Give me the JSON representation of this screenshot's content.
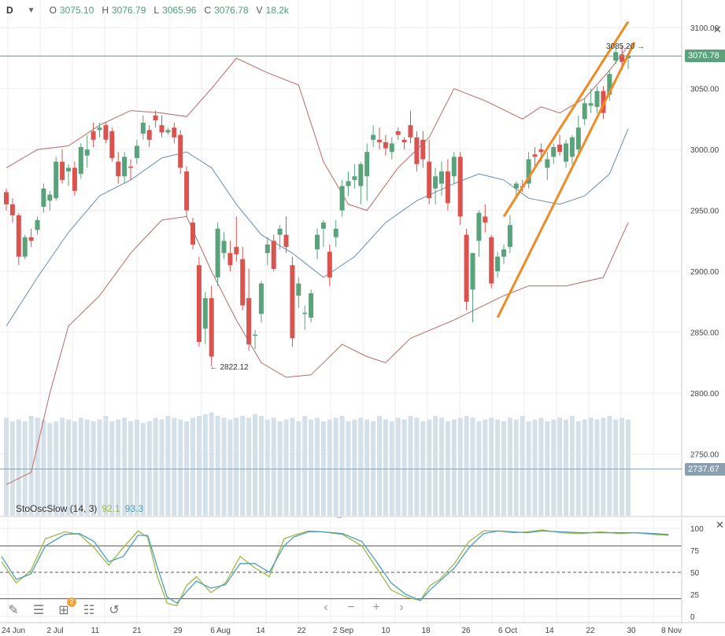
{
  "header": {
    "period": "D",
    "o_label": "O",
    "o_value": "3075.10",
    "h_label": "H",
    "h_value": "3076.79",
    "l_label": "L",
    "l_value": "3065.96",
    "c_label": "C",
    "c_value": "3076.78",
    "v_label": "V",
    "v_value": "18.2k"
  },
  "price_axis": {
    "ticks": [
      "3100.00",
      "3050.00",
      "3000.00",
      "2950.00",
      "2900.00",
      "2850.00",
      "2800.00",
      "2750.00"
    ],
    "tick_values": [
      3100,
      3050,
      3000,
      2950,
      2900,
      2850,
      2800,
      2750
    ]
  },
  "price_tags": {
    "last": "3076.78",
    "last_color": "#5aa27c",
    "volume_level": "2737.67",
    "volume_color": "#8aa0b0"
  },
  "annotations": {
    "high": "3085.20",
    "low": "2822.12"
  },
  "oscillator": {
    "name": "StoOscSlow (14, 3)",
    "k_value": "92.1",
    "d_value": "93.3",
    "k_color": "#9cb84c",
    "d_color": "#4d9fb5",
    "ticks": [
      "100",
      "75",
      "50",
      "25",
      "0"
    ],
    "tick_values": [
      100,
      75,
      50,
      25,
      0
    ]
  },
  "dates": [
    "24 Jun",
    "2 Jul",
    "11",
    "21",
    "29",
    "6 Aug",
    "14",
    "22",
    "2 Sep",
    "10",
    "18",
    "26",
    "6 Oct",
    "14",
    "22",
    "30",
    "8 Nov"
  ],
  "colors": {
    "up": "#5aa27c",
    "down": "#d9534f",
    "band": "#b86a66",
    "mid": "#6b8cb0",
    "volume": "#d5e1ea",
    "trend": "#f08a24",
    "last_line": "#5aa27c"
  },
  "chart_data": {
    "type": "candlestick",
    "ylim": [
      2720,
      3115
    ],
    "candles": [
      [
        2965,
        2968,
        2950,
        2955
      ],
      [
        2955,
        2960,
        2940,
        2946
      ],
      [
        2946,
        2948,
        2905,
        2912
      ],
      [
        2912,
        2930,
        2910,
        2928
      ],
      [
        2928,
        2935,
        2920,
        2925
      ],
      [
        2934,
        2945,
        2930,
        2942
      ],
      [
        2953,
        2972,
        2948,
        2968
      ],
      [
        2958,
        2966,
        2950,
        2963
      ],
      [
        2960,
        2994,
        2958,
        2990
      ],
      [
        2990,
        3000,
        2972,
        2975
      ],
      [
        2982,
        2988,
        2970,
        2985
      ],
      [
        2985,
        2990,
        2962,
        2966
      ],
      [
        2980,
        3005,
        2976,
        3002
      ],
      [
        2995,
        3012,
        2985,
        3000
      ],
      [
        3015,
        3022,
        3002,
        3008
      ],
      [
        3016,
        3022,
        3010,
        3018
      ],
      [
        3020,
        3022,
        3005,
        3008
      ],
      [
        3015,
        3018,
        2990,
        2993
      ],
      [
        2990,
        2998,
        2972,
        2978
      ],
      [
        2978,
        2998,
        2972,
        2994
      ],
      [
        2986,
        2992,
        2975,
        2985
      ],
      [
        2993,
        3008,
        2988,
        3003
      ],
      [
        3013,
        3028,
        3008,
        3022
      ],
      [
        3016,
        3020,
        3002,
        3008
      ],
      [
        3028,
        3032,
        3018,
        3024
      ],
      [
        3020,
        3028,
        3010,
        3014
      ],
      [
        3014,
        3018,
        3012,
        3016
      ],
      [
        3018,
        3022,
        3005,
        3010
      ],
      [
        3012,
        3016,
        2980,
        2985
      ],
      [
        2982,
        2986,
        2945,
        2950
      ],
      [
        2940,
        2944,
        2918,
        2922
      ],
      [
        2905,
        2912,
        2838,
        2842
      ],
      [
        2853,
        2883,
        2840,
        2878
      ],
      [
        2878,
        2888,
        2822,
        2830
      ],
      [
        2895,
        2940,
        2888,
        2935
      ],
      [
        2915,
        2932,
        2910,
        2925
      ],
      [
        2915,
        2925,
        2900,
        2905
      ],
      [
        2920,
        2945,
        2908,
        2914
      ],
      [
        2910,
        2920,
        2868,
        2872
      ],
      [
        2878,
        2902,
        2835,
        2840
      ],
      [
        2848,
        2852,
        2836,
        2848
      ],
      [
        2865,
        2892,
        2858,
        2890
      ],
      [
        2915,
        2928,
        2905,
        2922
      ],
      [
        2925,
        2930,
        2900,
        2902
      ],
      [
        2930,
        2938,
        2918,
        2935
      ],
      [
        2930,
        2945,
        2915,
        2920
      ],
      [
        2905,
        2912,
        2838,
        2845
      ],
      [
        2880,
        2895,
        2870,
        2890
      ],
      [
        2865,
        2872,
        2852,
        2866
      ],
      [
        2862,
        2885,
        2858,
        2882
      ],
      [
        2918,
        2935,
        2910,
        2930
      ],
      [
        2935,
        2942,
        2920,
        2940
      ],
      [
        2916,
        2922,
        2888,
        2895
      ],
      [
        2928,
        2942,
        2920,
        2935
      ],
      [
        2950,
        2975,
        2945,
        2970
      ],
      [
        2970,
        2982,
        2962,
        2974
      ],
      [
        2975,
        2988,
        2968,
        2978
      ],
      [
        2970,
        2990,
        2955,
        2988
      ],
      [
        2978,
        3005,
        2958,
        2998
      ],
      [
        3008,
        3020,
        3002,
        3012
      ],
      [
        3008,
        3018,
        3000,
        3006
      ],
      [
        3006,
        3012,
        2995,
        3001
      ],
      [
        2998,
        3010,
        2992,
        3005
      ],
      [
        3015,
        3018,
        3008,
        3012
      ],
      [
        3008,
        3010,
        3000,
        3006
      ],
      [
        3020,
        3032,
        3005,
        3010
      ],
      [
        3010,
        3015,
        2982,
        2988
      ],
      [
        3008,
        3015,
        2985,
        2992
      ],
      [
        2990,
        3008,
        2955,
        2960
      ],
      [
        2968,
        2985,
        2955,
        2978
      ],
      [
        2972,
        2990,
        2962,
        2982
      ],
      [
        2982,
        2992,
        2950,
        2956
      ],
      [
        2978,
        2998,
        2972,
        2994
      ],
      [
        2994,
        2998,
        2938,
        2945
      ],
      [
        2930,
        2935,
        2868,
        2875
      ],
      [
        2885,
        2915,
        2858,
        2915
      ],
      [
        2925,
        2950,
        2912,
        2948
      ],
      [
        2945,
        2955,
        2932,
        2940
      ],
      [
        2928,
        2930,
        2886,
        2890
      ],
      [
        2900,
        2916,
        2895,
        2912
      ],
      [
        2912,
        2922,
        2906,
        2918
      ],
      [
        2920,
        2946,
        2915,
        2938
      ],
      [
        2968,
        2974,
        2962,
        2972
      ],
      [
        2970,
        2975,
        2965,
        2969
      ],
      [
        2972,
        2998,
        2968,
        2992
      ],
      [
        2996,
        3002,
        2985,
        2994
      ],
      [
        3000,
        3005,
        2990,
        2998
      ],
      [
        2985,
        2998,
        2975,
        2992
      ],
      [
        2994,
        3005,
        2988,
        3002
      ],
      [
        3004,
        3012,
        2995,
        2998
      ],
      [
        2990,
        3008,
        2985,
        3005
      ],
      [
        2994,
        3012,
        2988,
        3010
      ],
      [
        3000,
        3028,
        2996,
        3018
      ],
      [
        3025,
        3042,
        3020,
        3038
      ],
      [
        3036,
        3050,
        3030,
        3038
      ],
      [
        3035,
        3052,
        3030,
        3048
      ],
      [
        3048,
        3052,
        3025,
        3030
      ],
      [
        3045,
        3065,
        3040,
        3062
      ],
      [
        3073,
        3085,
        3070,
        3080
      ],
      [
        3078,
        3085,
        3065,
        3072
      ],
      [
        3075,
        3077,
        3066,
        3077
      ]
    ],
    "volume": [
      0.55,
      0.53,
      0.54,
      0.53,
      0.56,
      0.55,
      0.54,
      0.52,
      0.53,
      0.55,
      0.54,
      0.53,
      0.55,
      0.54,
      0.53,
      0.54,
      0.56,
      0.53,
      0.54,
      0.55,
      0.53,
      0.54,
      0.52,
      0.53,
      0.55,
      0.54,
      0.56,
      0.55,
      0.54,
      0.53,
      0.55,
      0.56,
      0.57,
      0.58,
      0.56,
      0.55,
      0.54,
      0.55,
      0.56,
      0.55,
      0.57,
      0.56,
      0.54,
      0.55,
      0.53,
      0.54,
      0.55,
      0.53,
      0.56,
      0.54,
      0.55,
      0.53,
      0.54,
      0.55,
      0.56,
      0.53,
      0.54,
      0.55,
      0.54,
      0.53,
      0.56,
      0.54,
      0.53,
      0.55,
      0.54,
      0.56,
      0.55,
      0.53,
      0.54,
      0.56,
      0.55,
      0.53,
      0.54,
      0.55,
      0.56,
      0.55,
      0.53,
      0.54,
      0.55,
      0.54,
      0.53,
      0.55,
      0.54,
      0.56,
      0.53,
      0.54,
      0.55,
      0.53,
      0.54,
      0.55,
      0.54,
      0.56,
      0.53,
      0.54,
      0.55,
      0.54,
      0.55,
      0.56,
      0.54,
      0.55,
      0.54
    ],
    "bollinger": {
      "upper": [
        [
          0,
          2985
        ],
        [
          5,
          3000
        ],
        [
          10,
          3003
        ],
        [
          15,
          3020
        ],
        [
          20,
          3032
        ],
        [
          25,
          3030
        ],
        [
          29,
          3027
        ],
        [
          33,
          3050
        ],
        [
          37,
          3075
        ],
        [
          42,
          3063
        ],
        [
          47,
          3053
        ],
        [
          51,
          2990
        ],
        [
          55,
          2955
        ],
        [
          58,
          2950
        ],
        [
          63,
          2985
        ],
        [
          68,
          3010
        ],
        [
          72,
          3050
        ],
        [
          77,
          3040
        ],
        [
          83,
          3025
        ],
        [
          86,
          3035
        ],
        [
          89,
          3030
        ],
        [
          93,
          3042
        ],
        [
          97,
          3065
        ],
        [
          100,
          3085
        ]
      ],
      "middle": [
        [
          0,
          2855
        ],
        [
          5,
          2895
        ],
        [
          10,
          2932
        ],
        [
          15,
          2962
        ],
        [
          20,
          2975
        ],
        [
          25,
          2993
        ],
        [
          29,
          2998
        ],
        [
          33,
          2985
        ],
        [
          37,
          2955
        ],
        [
          41,
          2930
        ],
        [
          46,
          2915
        ],
        [
          51,
          2895
        ],
        [
          56,
          2912
        ],
        [
          61,
          2940
        ],
        [
          66,
          2958
        ],
        [
          72,
          2972
        ],
        [
          76,
          2980
        ],
        [
          80,
          2975
        ],
        [
          84,
          2960
        ],
        [
          89,
          2955
        ],
        [
          93,
          2962
        ],
        [
          97,
          2980
        ],
        [
          100,
          3017
        ]
      ],
      "lower": [
        [
          0,
          2725
        ],
        [
          4,
          2735
        ],
        [
          7,
          2800
        ],
        [
          10,
          2855
        ],
        [
          15,
          2880
        ],
        [
          20,
          2915
        ],
        [
          25,
          2942
        ],
        [
          29,
          2945
        ],
        [
          33,
          2900
        ],
        [
          37,
          2860
        ],
        [
          41,
          2825
        ],
        [
          45,
          2813
        ],
        [
          49,
          2815
        ],
        [
          54,
          2840
        ],
        [
          58,
          2830
        ],
        [
          61,
          2825
        ],
        [
          65,
          2845
        ],
        [
          72,
          2860
        ],
        [
          76,
          2870
        ],
        [
          80,
          2880
        ],
        [
          84,
          2888
        ],
        [
          90,
          2888
        ],
        [
          96,
          2895
        ],
        [
          100,
          2940
        ]
      ]
    },
    "trendlines": [
      [
        [
          80,
          2945
        ],
        [
          100,
          3105
        ]
      ],
      [
        [
          79,
          2862
        ],
        [
          101,
          3088
        ]
      ]
    ],
    "stochastic": {
      "k": [
        [
          0,
          62
        ],
        [
          3,
          38
        ],
        [
          6,
          52
        ],
        [
          9,
          88
        ],
        [
          13,
          96
        ],
        [
          16,
          93
        ],
        [
          19,
          78
        ],
        [
          22,
          58
        ],
        [
          25,
          78
        ],
        [
          28,
          97
        ],
        [
          30,
          90
        ],
        [
          32,
          45
        ],
        [
          34,
          15
        ],
        [
          36,
          12
        ],
        [
          38,
          35
        ],
        [
          40,
          45
        ],
        [
          43,
          27
        ],
        [
          46,
          38
        ],
        [
          49,
          68
        ],
        [
          52,
          55
        ],
        [
          55,
          45
        ],
        [
          58,
          88
        ],
        [
          60,
          92
        ],
        [
          63,
          97
        ],
        [
          66,
          96
        ],
        [
          70,
          93
        ],
        [
          74,
          80
        ],
        [
          77,
          55
        ],
        [
          80,
          30
        ],
        [
          83,
          22
        ],
        [
          86,
          18
        ],
        [
          88,
          35
        ],
        [
          90,
          42
        ],
        [
          93,
          60
        ],
        [
          96,
          85
        ],
        [
          99,
          97
        ],
        [
          102,
          97
        ],
        [
          105,
          95
        ],
        [
          108,
          96
        ],
        [
          111,
          98
        ],
        [
          115,
          95
        ],
        [
          119,
          94
        ],
        [
          123,
          96
        ],
        [
          127,
          94
        ],
        [
          130,
          95
        ],
        [
          134,
          93
        ],
        [
          137,
          92
        ]
      ],
      "d": [
        [
          0,
          68
        ],
        [
          3,
          42
        ],
        [
          6,
          48
        ],
        [
          9,
          80
        ],
        [
          13,
          93
        ],
        [
          16,
          94
        ],
        [
          19,
          85
        ],
        [
          22,
          62
        ],
        [
          25,
          68
        ],
        [
          28,
          92
        ],
        [
          30,
          92
        ],
        [
          32,
          56
        ],
        [
          34,
          22
        ],
        [
          36,
          15
        ],
        [
          38,
          28
        ],
        [
          40,
          40
        ],
        [
          43,
          32
        ],
        [
          46,
          36
        ],
        [
          49,
          60
        ],
        [
          52,
          60
        ],
        [
          55,
          50
        ],
        [
          58,
          80
        ],
        [
          60,
          90
        ],
        [
          63,
          96
        ],
        [
          66,
          96
        ],
        [
          70,
          94
        ],
        [
          74,
          85
        ],
        [
          77,
          62
        ],
        [
          80,
          38
        ],
        [
          83,
          25
        ],
        [
          86,
          18
        ],
        [
          88,
          30
        ],
        [
          90,
          40
        ],
        [
          93,
          55
        ],
        [
          96,
          78
        ],
        [
          99,
          94
        ],
        [
          102,
          97
        ],
        [
          105,
          96
        ],
        [
          108,
          95
        ],
        [
          111,
          97
        ],
        [
          115,
          96
        ],
        [
          119,
          95
        ],
        [
          123,
          95
        ],
        [
          127,
          95
        ],
        [
          130,
          95
        ],
        [
          134,
          94
        ],
        [
          137,
          93
        ]
      ]
    }
  }
}
